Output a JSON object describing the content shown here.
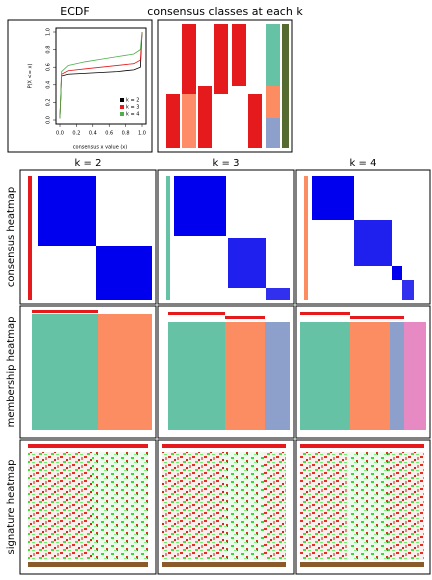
{
  "chart_data": {
    "type": "line",
    "title": "ECDF",
    "xlabel": "consensus x value (x)",
    "ylabel": "P(X <= x)",
    "x": [
      0,
      0.02,
      0.1,
      0.3,
      0.5,
      0.7,
      0.9,
      0.98,
      1
    ],
    "series": [
      {
        "name": "k = 2",
        "color": "#000000",
        "values": [
          0.02,
          0.5,
          0.52,
          0.53,
          0.54,
          0.55,
          0.57,
          0.6,
          1
        ]
      },
      {
        "name": "k = 3",
        "color": "#e41a1c",
        "values": [
          0.02,
          0.52,
          0.56,
          0.58,
          0.6,
          0.62,
          0.64,
          0.68,
          1
        ]
      },
      {
        "name": "k = 4",
        "color": "#4daf4a",
        "values": [
          0.02,
          0.55,
          0.62,
          0.66,
          0.69,
          0.72,
          0.75,
          0.8,
          1
        ]
      }
    ],
    "xlim": [
      0,
      1
    ],
    "ylim": [
      0,
      1
    ],
    "xticks": [
      {
        "value": 0,
        "label": "0.0"
      },
      0.2,
      0.4,
      0.6,
      0.8,
      {
        "value": 1,
        "label": "1.0"
      }
    ],
    "yticks": [
      {
        "value": 0,
        "label": "0.0"
      },
      0.2,
      0.4,
      0.6,
      0.8,
      {
        "value": 1,
        "label": "1.0"
      }
    ],
    "legend": "bottom-right"
  },
  "panels": {
    "classes_title": "consensus classes at each k",
    "columns": [
      "k = 2",
      "k = 3",
      "k = 4"
    ],
    "rows": [
      "consensus heatmap",
      "membership heatmap",
      "signature heatmap"
    ]
  }
}
